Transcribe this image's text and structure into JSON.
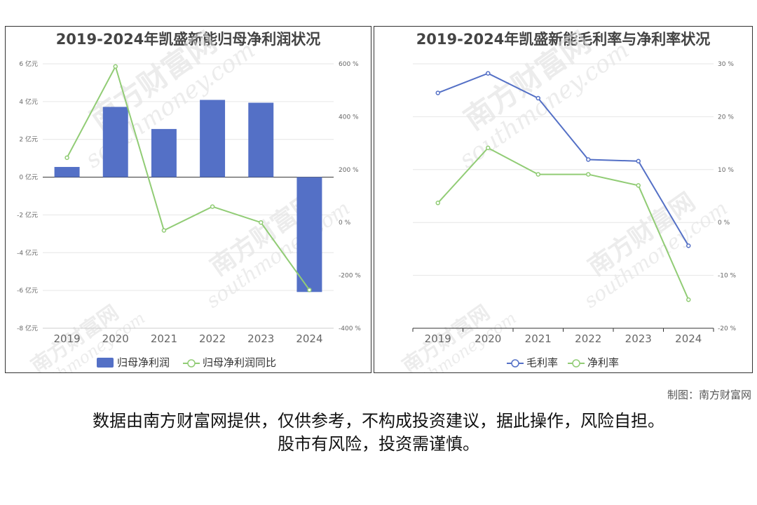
{
  "colors": {
    "bar": "#5470c6",
    "line_green": "#91cc75",
    "line_blue": "#5470c6",
    "watermark": "#dddddd"
  },
  "watermark": {
    "cn": "南方财富网",
    "en": "southmoney.com"
  },
  "chart_data": [
    {
      "type": "bar",
      "title": "2019-2024年凯盛新能归母净利润状况",
      "categories": [
        "2019",
        "2020",
        "2021",
        "2022",
        "2023",
        "2024"
      ],
      "series": [
        {
          "name": "归母净利润",
          "type": "bar",
          "axis": "left",
          "values": [
            0.54,
            3.72,
            2.55,
            4.09,
            3.94,
            -6.08
          ]
        },
        {
          "name": "归母净利润同比",
          "type": "line",
          "axis": "right",
          "values": [
            245,
            590,
            -30,
            60,
            0,
            -255
          ]
        }
      ],
      "y_left": {
        "ticks": [
          "6 亿元",
          "4 亿元",
          "2 亿元",
          "0 亿元",
          "-2 亿元",
          "-4 亿元",
          "-6 亿元",
          "-8 亿元"
        ],
        "ylim": [
          -8,
          6
        ]
      },
      "y_right": {
        "ticks": [
          "600 %",
          "400 %",
          "200 %",
          "0 %",
          "-200 %",
          "-400 %"
        ],
        "ylim": [
          -400,
          600
        ]
      },
      "grid": true,
      "legend": "bottom-center"
    },
    {
      "type": "line",
      "title": "2019-2024年凯盛新能毛利率与净利率状况",
      "categories": [
        "2019",
        "2020",
        "2021",
        "2022",
        "2023",
        "2024"
      ],
      "series": [
        {
          "name": "毛利率",
          "values": [
            24.5,
            28.2,
            23.5,
            11.9,
            11.6,
            -4.4
          ]
        },
        {
          "name": "净利率",
          "values": [
            3.7,
            14.1,
            9.1,
            9.1,
            7.0,
            -14.6
          ]
        }
      ],
      "y_right": {
        "ticks": [
          "30 %",
          "20 %",
          "10 %",
          "0 %",
          "-10 %",
          "-20 %"
        ],
        "ylim": [
          -20,
          30
        ]
      },
      "grid": true,
      "legend": "bottom-center"
    }
  ],
  "credit": "制图：南方财富网",
  "disclaimer": [
    "数据由南方财富网提供，仅供参考，不构成投资建议，据此操作，风险自担。",
    "股市有风险，投资需谨慎。"
  ]
}
